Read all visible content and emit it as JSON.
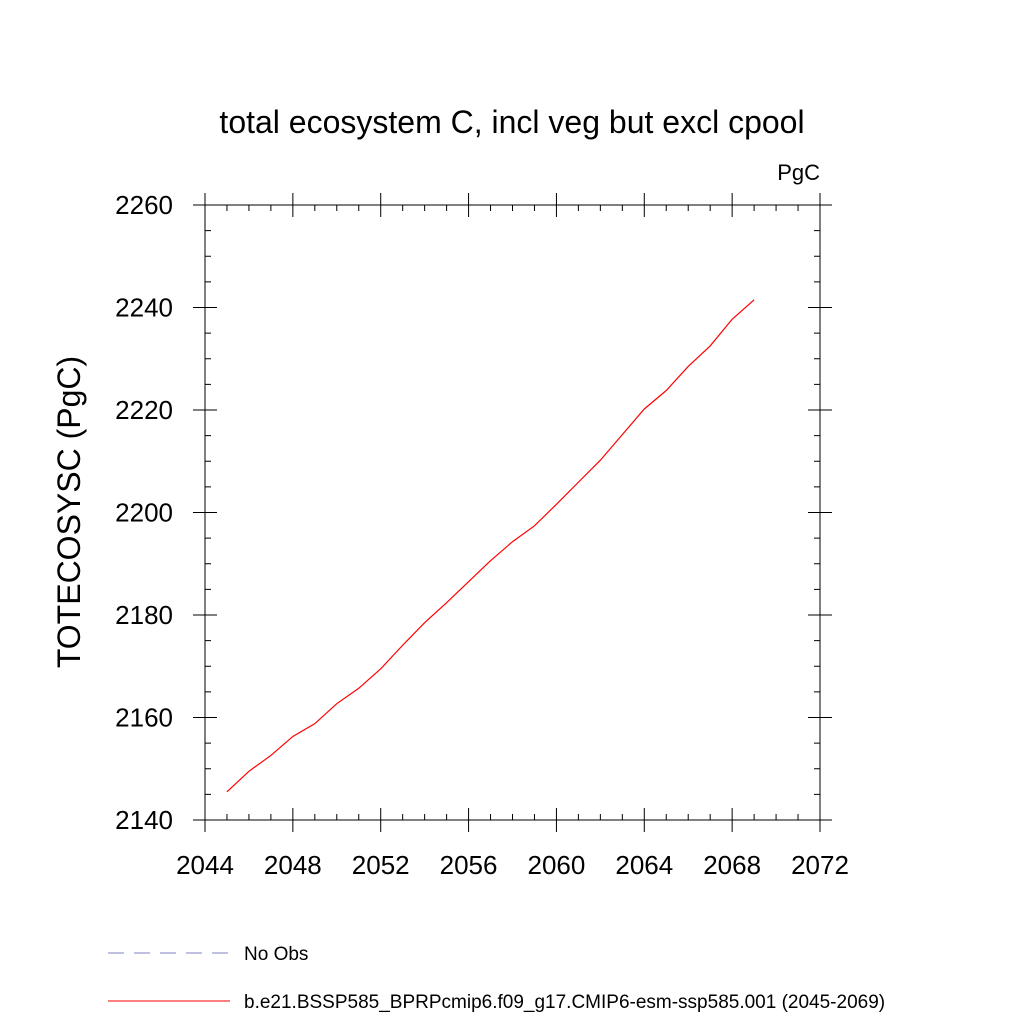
{
  "chart_data": {
    "type": "line",
    "title": "total ecosystem C, incl veg but excl cpool",
    "units_label": "PgC",
    "xlabel": "",
    "ylabel": "TOTECOSYSC  (PgC)",
    "xlim": [
      2044,
      2072
    ],
    "ylim": [
      2140,
      2260
    ],
    "x_ticks": [
      2044,
      2048,
      2052,
      2056,
      2060,
      2064,
      2068,
      2072
    ],
    "x_tick_labels": [
      "2044",
      "2048",
      "2052",
      "2056",
      "2060",
      "2064",
      "2068",
      "2072"
    ],
    "x_minor_step": 1,
    "y_ticks": [
      2140,
      2160,
      2180,
      2200,
      2220,
      2240,
      2260
    ],
    "y_tick_labels": [
      "2140",
      "2160",
      "2180",
      "2200",
      "2220",
      "2240",
      "2260"
    ],
    "y_minor_step": 5,
    "grid": false,
    "legend_position": "bottom",
    "legend": [
      {
        "label": "No Obs",
        "color": "#8080c0",
        "dash": "dashed"
      },
      {
        "label": "b.e21.BSSP585_BPRPcmip6.f09_g17.CMIP6-esm-ssp585.001 (2045-2069)",
        "color": "#ff0000",
        "dash": "solid"
      }
    ],
    "series": [
      {
        "name": "b.e21.BSSP585_BPRPcmip6.f09_g17.CMIP6-esm-ssp585.001 (2045-2069)",
        "color": "#ff0000",
        "x": [
          2045,
          2046,
          2047,
          2048,
          2049,
          2050,
          2051,
          2052,
          2053,
          2054,
          2055,
          2056,
          2057,
          2058,
          2059,
          2060,
          2061,
          2062,
          2063,
          2064,
          2065,
          2066,
          2067,
          2068,
          2069
        ],
        "values": [
          2145.5,
          2149.5,
          2152.6,
          2156.3,
          2158.8,
          2162.7,
          2165.7,
          2169.5,
          2174.1,
          2178.5,
          2182.4,
          2186.5,
          2190.6,
          2194.3,
          2197.4,
          2201.6,
          2205.9,
          2210.2,
          2215.2,
          2220.2,
          2223.8,
          2228.5,
          2232.5,
          2237.7,
          2241.5
        ]
      }
    ]
  }
}
